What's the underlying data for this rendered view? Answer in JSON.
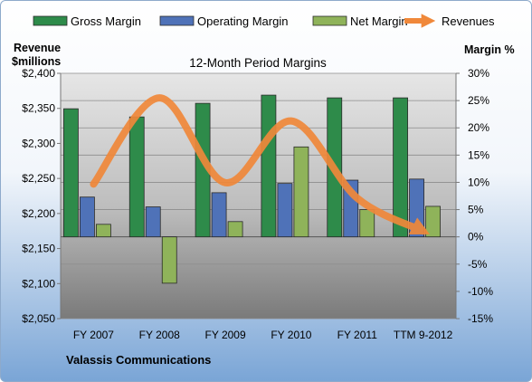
{
  "chart_data": {
    "type": "bar",
    "title": "12-Month Period Margins",
    "company": "Valassis Communications",
    "categories": [
      "FY 2007",
      "FY 2008",
      "FY 2009",
      "FY 2010",
      "FY 2011",
      "TTM 9-2012"
    ],
    "series": [
      {
        "name": "Gross Margin",
        "type": "bar",
        "axis": "right",
        "color": "#2e8b4a",
        "values": [
          23.5,
          22.0,
          24.5,
          26.0,
          25.5,
          25.5
        ]
      },
      {
        "name": "Operating Margin",
        "type": "bar",
        "axis": "right",
        "color": "#4f72b8",
        "values": [
          7.3,
          5.5,
          8.1,
          9.8,
          10.4,
          10.6
        ]
      },
      {
        "name": "Net Margin",
        "type": "bar",
        "axis": "right",
        "color": "#8fb35a",
        "values": [
          2.3,
          -8.5,
          2.8,
          16.5,
          5.0,
          5.6
        ]
      },
      {
        "name": "Revenues",
        "type": "line",
        "axis": "left",
        "color": "#f0883a",
        "values": [
          2242,
          2365,
          2244,
          2332,
          2222,
          2175
        ]
      }
    ],
    "y_left": {
      "label_line1": "Revenue",
      "label_line2": "$millions",
      "min": 2050,
      "max": 2400,
      "step": 50,
      "ticks": [
        "$2,050",
        "$2,100",
        "$2,150",
        "$2,200",
        "$2,250",
        "$2,300",
        "$2,350",
        "$2,400"
      ]
    },
    "y_right": {
      "label": "Margin %",
      "min": -15,
      "max": 30,
      "step": 5,
      "ticks": [
        "-15%",
        "-10%",
        "-5%",
        "0%",
        "5%",
        "10%",
        "15%",
        "20%",
        "25%",
        "30%"
      ]
    },
    "legend": "top",
    "grid": true,
    "colors": {
      "plot_top": "#e4e4e4",
      "plot_bottom": "#7d7d7d",
      "frame_top": "#ffffff",
      "frame_bottom": "#7aa5d6"
    }
  }
}
